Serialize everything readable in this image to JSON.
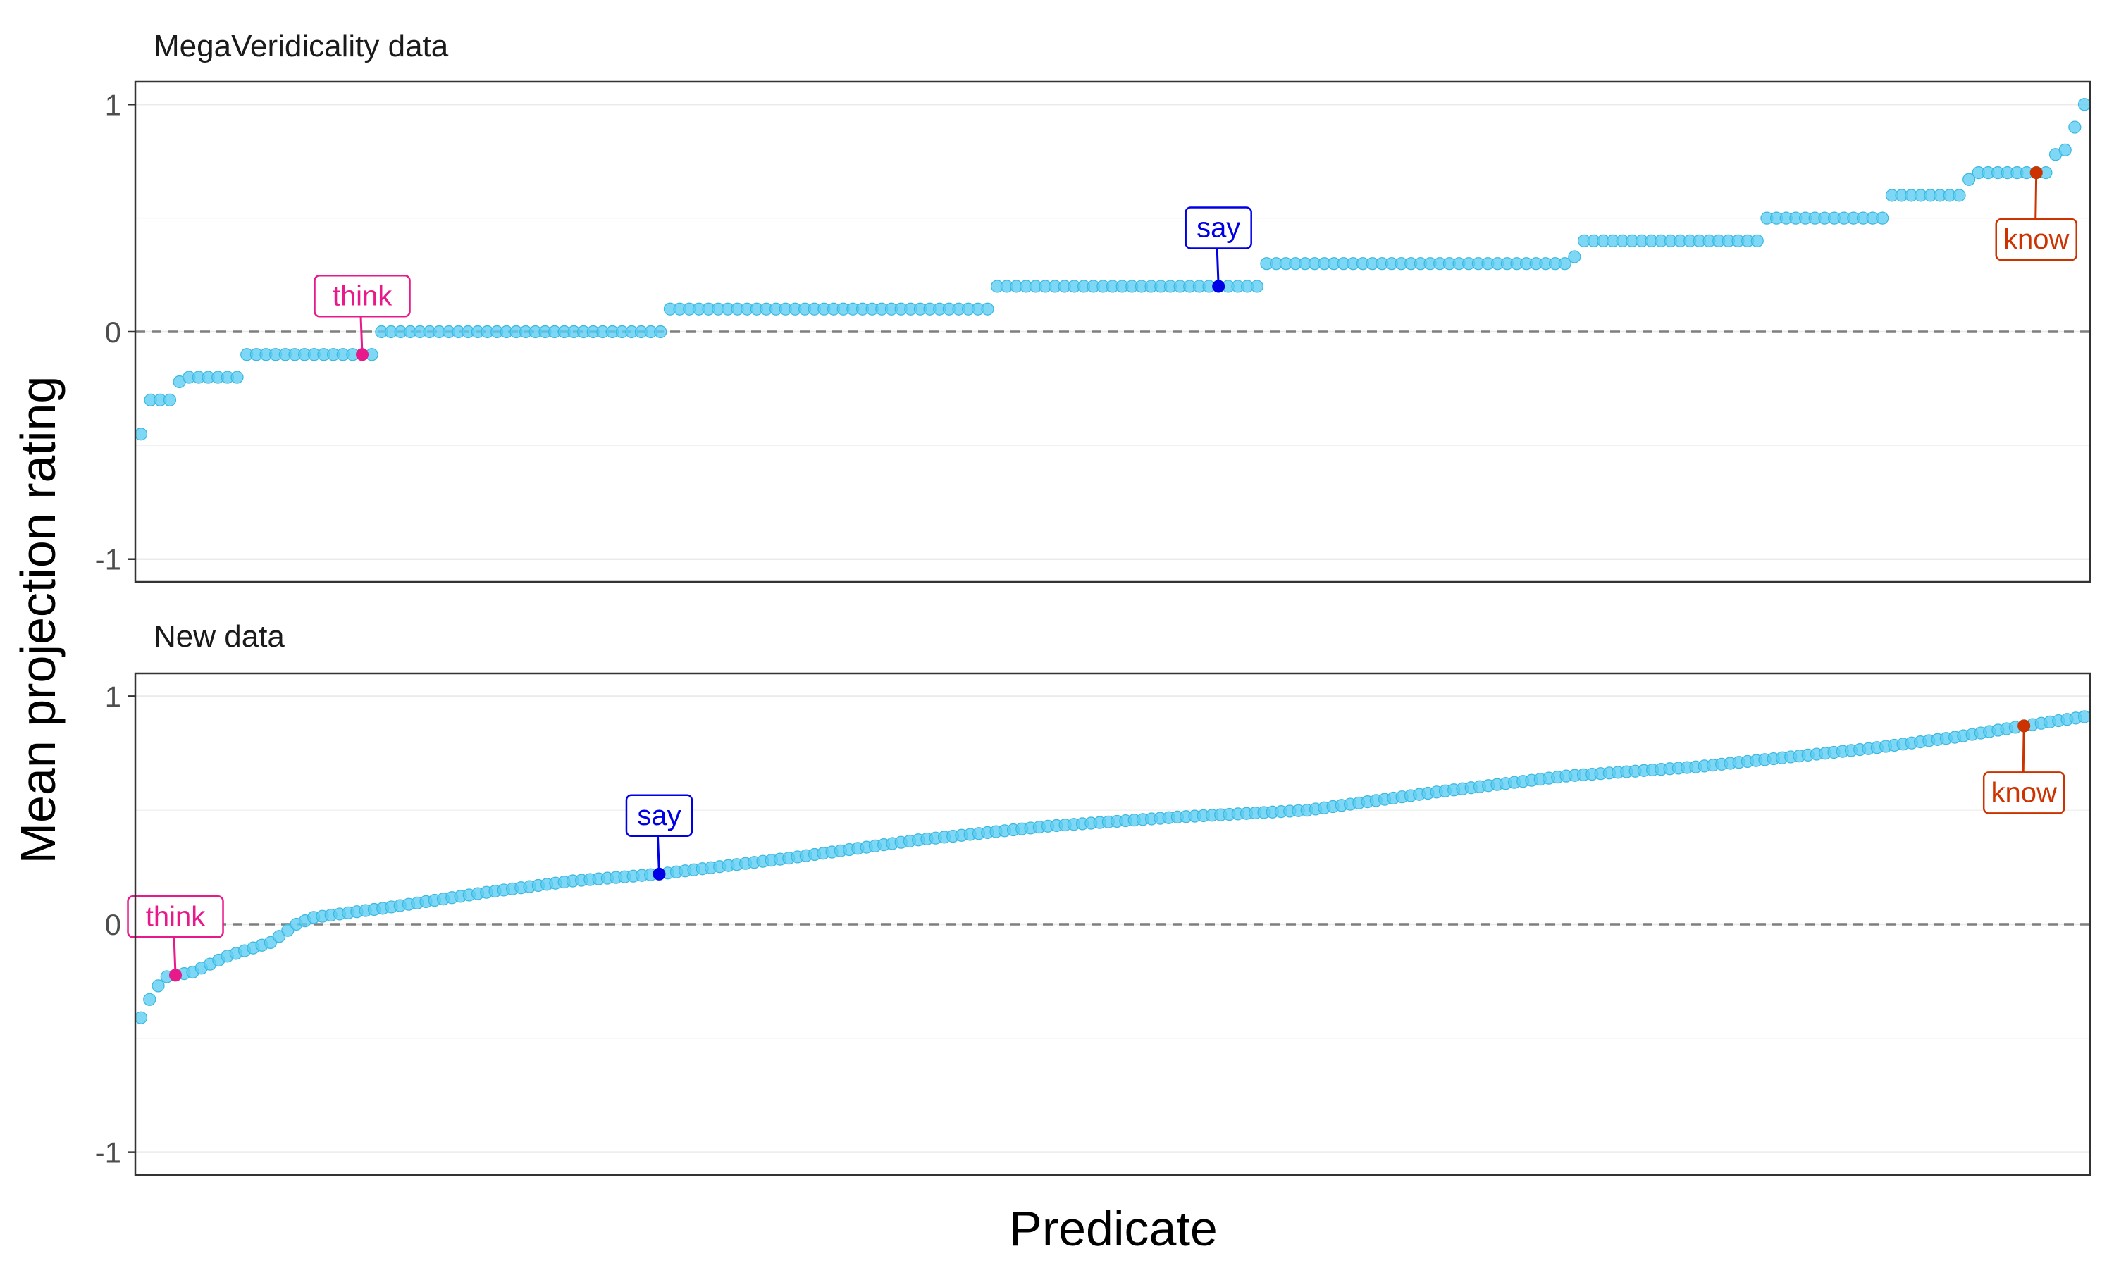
{
  "chart_data": {
    "type": "scatter",
    "ylabel": "Mean projection rating",
    "xlabel": "Predicate",
    "point_color": "#5ccdf2",
    "grid": true,
    "facets": [
      {
        "title": "MegaVeridicality data",
        "ylim": [
          -1.1,
          1.1
        ],
        "yticks": [
          {
            "value": 1,
            "label": "1"
          },
          {
            "value": 0,
            "label": "0"
          },
          {
            "value": -1,
            "label": "-1"
          }
        ],
        "reference_line": 0,
        "steps": [
          {
            "y": -0.45,
            "n": 1
          },
          {
            "y": -0.3,
            "n": 3
          },
          {
            "y": -0.22,
            "n": 1
          },
          {
            "y": -0.2,
            "n": 6
          },
          {
            "y": -0.1,
            "n": 14
          },
          {
            "y": 0.0,
            "n": 30
          },
          {
            "y": 0.1,
            "n": 34
          },
          {
            "y": 0.2,
            "n": 28
          },
          {
            "y": 0.3,
            "n": 32
          },
          {
            "y": 0.33,
            "n": 1
          },
          {
            "y": 0.4,
            "n": 19
          },
          {
            "y": 0.5,
            "n": 13
          },
          {
            "y": 0.6,
            "n": 8
          },
          {
            "y": 0.67,
            "n": 1
          },
          {
            "y": 0.7,
            "n": 8
          },
          {
            "y": 0.78,
            "n": 1
          },
          {
            "y": 0.8,
            "n": 1
          },
          {
            "y": 0.9,
            "n": 1
          },
          {
            "y": 1.0,
            "n": 1
          }
        ],
        "highlights": [
          {
            "label": "think",
            "index": 23,
            "color": "#e8198b",
            "box": "above"
          },
          {
            "label": "say",
            "index": 112,
            "color": "#0000e6",
            "box": "above"
          },
          {
            "label": "know",
            "index": 197,
            "color": "#cc3300",
            "box": "below"
          }
        ]
      },
      {
        "title": "New data",
        "ylim": [
          -1.1,
          1.1
        ],
        "yticks": [
          {
            "value": 1,
            "label": "1"
          },
          {
            "value": 0,
            "label": "0"
          },
          {
            "value": -1,
            "label": "-1"
          }
        ],
        "reference_line": 0,
        "knots": [
          [
            0,
            -0.41
          ],
          [
            1,
            -0.33
          ],
          [
            2,
            -0.27
          ],
          [
            3,
            -0.23
          ],
          [
            6,
            -0.21
          ],
          [
            10,
            -0.14
          ],
          [
            15,
            -0.08
          ],
          [
            18,
            0.0
          ],
          [
            20,
            0.03
          ],
          [
            28,
            0.07
          ],
          [
            40,
            0.14
          ],
          [
            50,
            0.19
          ],
          [
            60,
            0.22
          ],
          [
            75,
            0.29
          ],
          [
            90,
            0.37
          ],
          [
            105,
            0.43
          ],
          [
            120,
            0.47
          ],
          [
            135,
            0.5
          ],
          [
            150,
            0.58
          ],
          [
            165,
            0.65
          ],
          [
            180,
            0.69
          ],
          [
            190,
            0.73
          ],
          [
            200,
            0.77
          ],
          [
            210,
            0.82
          ],
          [
            218,
            0.87
          ],
          [
            225,
            0.91
          ]
        ],
        "count": 226,
        "highlights": [
          {
            "label": "think",
            "index": 4,
            "color": "#e8198b",
            "box": "above"
          },
          {
            "label": "say",
            "index": 60,
            "color": "#0000e6",
            "box": "above"
          },
          {
            "label": "know",
            "index": 218,
            "color": "#cc3300",
            "box": "below"
          }
        ]
      }
    ]
  }
}
